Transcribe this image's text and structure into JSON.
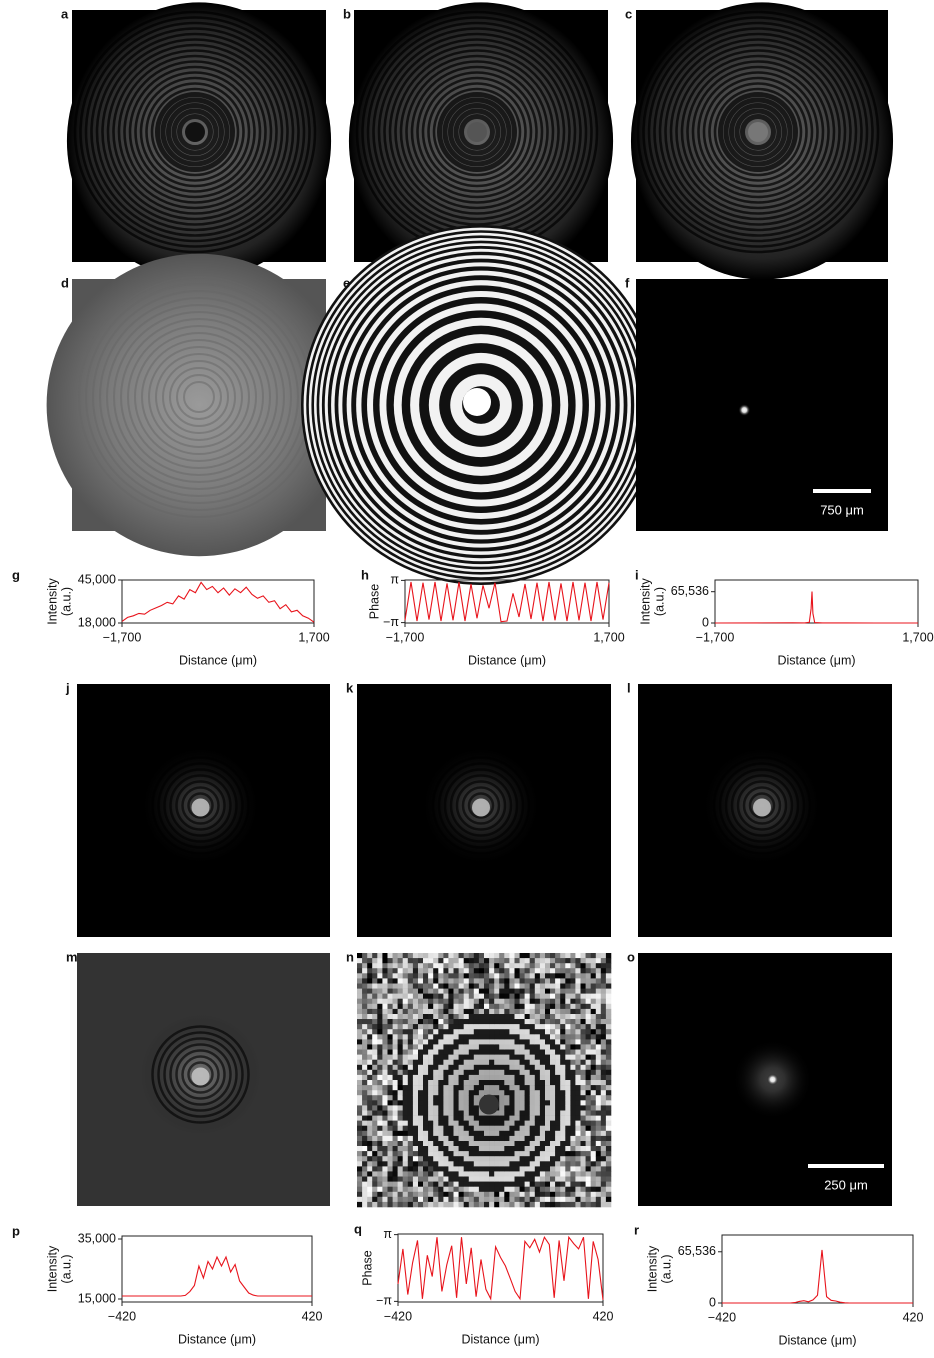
{
  "panel_labels": [
    "a",
    "b",
    "c",
    "d",
    "e",
    "f",
    "g",
    "h",
    "i",
    "j",
    "k",
    "l",
    "m",
    "n",
    "o",
    "p",
    "q",
    "r"
  ],
  "scale_bars": [
    "750 μm",
    "250 μm"
  ],
  "chart_data": [
    {
      "type": "line",
      "ylabel": [
        "Intensity",
        "(a.u.)"
      ],
      "xlabel": "Distance (μm)",
      "color": "#e8141c",
      "x": [
        -1700,
        -1600,
        -1500,
        -1400,
        -1300,
        -1200,
        -1100,
        -1000,
        -900,
        -800,
        -700,
        -600,
        -500,
        -400,
        -300,
        -200,
        -100,
        0,
        100,
        200,
        300,
        400,
        500,
        600,
        700,
        800,
        900,
        1000,
        1100,
        1200,
        1300,
        1400,
        1500,
        1600,
        1700
      ],
      "values": [
        19000,
        21500,
        22500,
        24000,
        23500,
        26000,
        27500,
        29000,
        31000,
        30000,
        35000,
        33000,
        39000,
        37000,
        43500,
        39000,
        41000,
        37000,
        40000,
        35500,
        39500,
        37000,
        40500,
        36000,
        33500,
        35000,
        31000,
        32000,
        27000,
        29500,
        25000,
        26000,
        22500,
        21000,
        18500
      ],
      "xlim": [
        -1700,
        1700
      ],
      "xticks": [
        {
          "value": -1700,
          "label": "−1,700"
        },
        {
          "value": 1700,
          "label": "1,700"
        }
      ],
      "ylim": [
        18000,
        45000
      ],
      "yticks": [
        {
          "value": 18000,
          "label": "18,000"
        },
        {
          "value": 45000,
          "label": "45,000"
        }
      ]
    },
    {
      "type": "line",
      "ylabel": [
        "Phase"
      ],
      "xlabel": "Distance (μm)",
      "color": "#e8141c",
      "x": [
        -1700,
        -1600,
        -1500,
        -1400,
        -1300,
        -1200,
        -1100,
        -1000,
        -900,
        -800,
        -700,
        -600,
        -500,
        -400,
        -300,
        -200,
        -100,
        0,
        100,
        200,
        300,
        400,
        500,
        600,
        700,
        800,
        900,
        1000,
        1100,
        1200,
        1300,
        1400,
        1500,
        1600,
        1700
      ],
      "values": [
        -2.8,
        2.9,
        -2.9,
        2.8,
        -2.7,
        2.9,
        -2.9,
        2.7,
        -2.8,
        2.9,
        -2.9,
        2.6,
        -2.5,
        2.4,
        -1.0,
        2.8,
        -3.0,
        -2.9,
        1.2,
        -2.3,
        2.6,
        -2.6,
        2.8,
        -2.9,
        2.9,
        -2.8,
        2.7,
        -2.9,
        2.9,
        -2.8,
        2.8,
        -2.9,
        2.9,
        -2.7,
        2.8
      ],
      "xlim": [
        -1700,
        1700
      ],
      "xticks": [
        {
          "value": -1700,
          "label": "−1,700"
        },
        {
          "value": 1700,
          "label": "1,700"
        }
      ],
      "ylim": [
        -3.2,
        3.2
      ],
      "yticks": [
        {
          "value": 3.14159,
          "label": "π"
        },
        {
          "value": -3.14159,
          "label": "−π"
        }
      ]
    },
    {
      "type": "line",
      "ylabel": [
        "Intensity",
        "(a.u.)"
      ],
      "xlabel": "Distance (μm)",
      "color": "#e8141c",
      "x": [
        -1700,
        -1000,
        -400,
        -200,
        -120,
        -90,
        -75,
        -60,
        -30,
        100,
        500,
        1000,
        1700
      ],
      "values": [
        0,
        300,
        500,
        200,
        1500,
        30000,
        66000,
        20000,
        800,
        300,
        200,
        100,
        0
      ],
      "xlim": [
        -1700,
        1700
      ],
      "xticks": [
        {
          "value": -1700,
          "label": "−1,700"
        },
        {
          "value": 1700,
          "label": "1,700"
        }
      ],
      "ylim": [
        0,
        90000
      ],
      "yticks": [
        0,
        {
          "value": 65536,
          "label": "65,536"
        }
      ]
    },
    {
      "type": "line",
      "ylabel": [
        "Intensity",
        "(a.u.)"
      ],
      "xlabel": "Distance (μm)",
      "color": "#e8141c",
      "x": [
        -420,
        -400,
        -380,
        -360,
        -340,
        -320,
        -300,
        -280,
        -260,
        -240,
        -220,
        -200,
        -180,
        -160,
        -140,
        -120,
        -100,
        -80,
        -60,
        -40,
        -20,
        0,
        20,
        40,
        60,
        80,
        100,
        120,
        140,
        160,
        180,
        200,
        220,
        240,
        260,
        280,
        300,
        320,
        340,
        360,
        380,
        400,
        420
      ],
      "values": [
        16000,
        16000,
        16000,
        16000,
        16000,
        16000,
        16000,
        16000,
        16000,
        16000,
        16000,
        16000,
        16000,
        16000,
        16200,
        17500,
        19500,
        26000,
        22000,
        27500,
        25000,
        29000,
        26000,
        29000,
        24000,
        26500,
        21000,
        19000,
        17000,
        16300,
        16000,
        16000,
        16000,
        16000,
        16000,
        16000,
        16000,
        16000,
        16000,
        16000,
        16000,
        16000,
        16000
      ],
      "xlim": [
        -420,
        420
      ],
      "xticks": [
        {
          "value": -420,
          "label": "−420"
        },
        420
      ],
      "ylim": [
        14000,
        36000
      ],
      "yticks": [
        {
          "value": 15000,
          "label": "15,000"
        },
        {
          "value": 35000,
          "label": "35,000"
        }
      ]
    },
    {
      "type": "line",
      "ylabel": [
        "Phase"
      ],
      "xlabel": "Distance (μm)",
      "color": "#e8141c",
      "x": [
        -420,
        -400,
        -380,
        -360,
        -340,
        -320,
        -300,
        -280,
        -260,
        -240,
        -220,
        -200,
        -180,
        -160,
        -140,
        -120,
        -100,
        -80,
        -60,
        -40,
        -20,
        0,
        20,
        40,
        60,
        80,
        100,
        120,
        140,
        160,
        180,
        200,
        220,
        240,
        260,
        280,
        300,
        320,
        340,
        360,
        380,
        400,
        420
      ],
      "values": [
        -1.5,
        1.8,
        -2.5,
        0.5,
        2.6,
        -2.9,
        1.2,
        -0.8,
        2.9,
        -2.2,
        0.3,
        2.1,
        -2.8,
        2.9,
        -1.5,
        1.9,
        -2.7,
        0.8,
        -2.0,
        -2.9,
        2.0,
        1.0,
        0.2,
        -1.0,
        -2.2,
        -2.9,
        2.5,
        1.9,
        2.7,
        1.5,
        2.9,
        2.2,
        -2.8,
        2.6,
        -1.2,
        2.9,
        2.3,
        1.8,
        2.9,
        -2.9,
        2.5,
        0.8,
        -3.0
      ],
      "xlim": [
        -420,
        420
      ],
      "xticks": [
        {
          "value": -420,
          "label": "−420"
        },
        420
      ],
      "ylim": [
        -3.2,
        3.2
      ],
      "yticks": [
        {
          "value": 3.14159,
          "label": "π"
        },
        {
          "value": -3.14159,
          "label": "−π"
        }
      ]
    },
    {
      "type": "line",
      "ylabel": [
        "Intensity",
        "(a.u.)"
      ],
      "xlabel": "Distance (μm)",
      "color": "#e8141c",
      "x": [
        -420,
        -400,
        -380,
        -360,
        -340,
        -320,
        -300,
        -280,
        -260,
        -240,
        -220,
        -200,
        -180,
        -160,
        -140,
        -120,
        -100,
        -80,
        -60,
        -40,
        -20,
        0,
        20,
        40,
        60,
        80,
        100,
        120,
        140,
        160,
        180,
        200,
        220,
        240,
        260,
        280,
        300,
        320,
        340,
        360,
        380,
        400,
        420
      ],
      "values": [
        0,
        0,
        0,
        0,
        0,
        0,
        0,
        0,
        0,
        0,
        0,
        0,
        0,
        0,
        0,
        0,
        500,
        2000,
        3000,
        1500,
        4000,
        10000,
        68000,
        8000,
        3500,
        2500,
        1000,
        300,
        0,
        0,
        0,
        0,
        0,
        0,
        0,
        0,
        0,
        0,
        0,
        0,
        0,
        0,
        0
      ],
      "xlim": [
        -420,
        420
      ],
      "xticks": [
        {
          "value": -420,
          "label": "−420"
        },
        420
      ],
      "ylim": [
        0,
        87000
      ],
      "yticks": [
        0,
        {
          "value": 65536,
          "label": "65,536"
        }
      ]
    }
  ]
}
